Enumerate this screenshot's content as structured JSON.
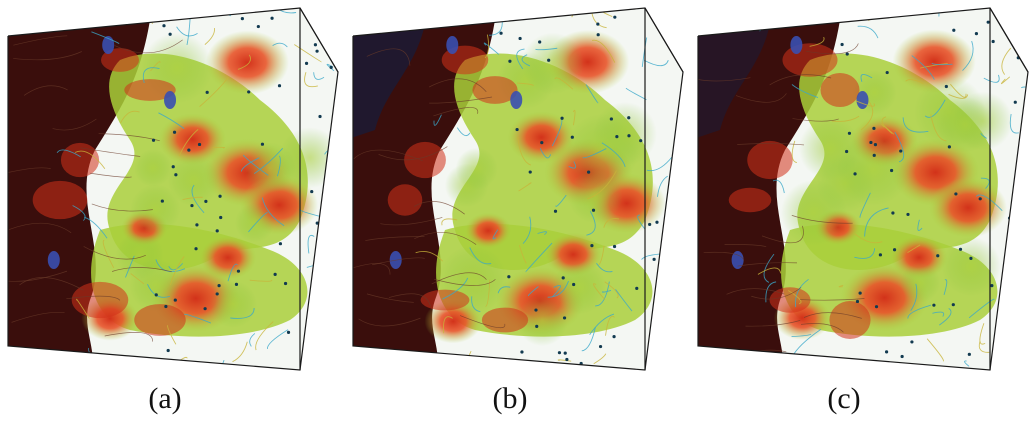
{
  "figure": {
    "panels": [
      {
        "id": "a",
        "caption": "(a)"
      },
      {
        "id": "b",
        "caption": "(b)"
      },
      {
        "id": "c",
        "caption": "(c)"
      }
    ],
    "colors": {
      "dark_red": "#3a0e0c",
      "red": "#d2321a",
      "orange": "#e8552a",
      "yellow_green": "#a9cf3a",
      "green": "#7fbf3a",
      "cyan_line": "#3aa7c9",
      "blue": "#3a4fb0",
      "edge": "#1a1a1a"
    }
  }
}
